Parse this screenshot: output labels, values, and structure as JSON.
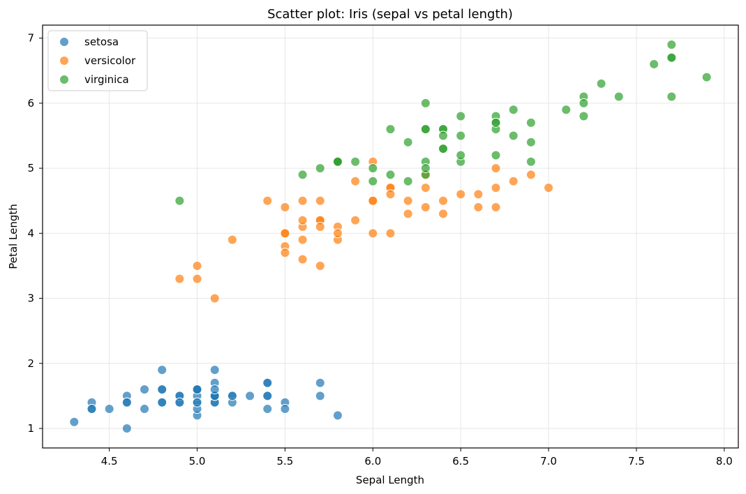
{
  "chart_data": {
    "type": "scatter",
    "title": "Scatter plot: Iris (sepal vs petal length)",
    "xlabel": "Sepal Length",
    "ylabel": "Petal Length",
    "xlim": [
      4.12,
      8.08
    ],
    "ylim": [
      0.7,
      7.2
    ],
    "x_ticks": [
      "4.5",
      "5.0",
      "5.5",
      "6.0",
      "6.5",
      "7.0",
      "7.5",
      "8.0"
    ],
    "y_ticks": [
      "1",
      "2",
      "3",
      "4",
      "5",
      "6",
      "7"
    ],
    "grid": true,
    "legend_position": "top-left",
    "point_alpha": 0.7,
    "series": [
      {
        "name": "setosa",
        "color": "#1f77b4",
        "points": [
          [
            5.1,
            1.4
          ],
          [
            4.9,
            1.4
          ],
          [
            4.7,
            1.3
          ],
          [
            4.6,
            1.5
          ],
          [
            5.0,
            1.4
          ],
          [
            5.4,
            1.7
          ],
          [
            4.6,
            1.4
          ],
          [
            5.0,
            1.5
          ],
          [
            4.4,
            1.4
          ],
          [
            4.9,
            1.5
          ],
          [
            5.4,
            1.5
          ],
          [
            4.8,
            1.6
          ],
          [
            4.8,
            1.4
          ],
          [
            4.3,
            1.1
          ],
          [
            5.8,
            1.2
          ],
          [
            5.7,
            1.5
          ],
          [
            5.4,
            1.3
          ],
          [
            5.1,
            1.4
          ],
          [
            5.7,
            1.7
          ],
          [
            5.1,
            1.5
          ],
          [
            5.4,
            1.7
          ],
          [
            5.1,
            1.5
          ],
          [
            4.6,
            1.0
          ],
          [
            5.1,
            1.7
          ],
          [
            4.8,
            1.9
          ],
          [
            5.0,
            1.6
          ],
          [
            5.0,
            1.6
          ],
          [
            5.2,
            1.5
          ],
          [
            5.2,
            1.4
          ],
          [
            4.7,
            1.6
          ],
          [
            4.8,
            1.6
          ],
          [
            5.4,
            1.5
          ],
          [
            5.2,
            1.5
          ],
          [
            5.5,
            1.4
          ],
          [
            4.9,
            1.5
          ],
          [
            5.0,
            1.2
          ],
          [
            5.5,
            1.3
          ],
          [
            4.9,
            1.4
          ],
          [
            4.4,
            1.3
          ],
          [
            5.1,
            1.5
          ],
          [
            5.0,
            1.3
          ],
          [
            4.5,
            1.3
          ],
          [
            4.4,
            1.3
          ],
          [
            5.0,
            1.6
          ],
          [
            5.1,
            1.9
          ],
          [
            4.8,
            1.4
          ],
          [
            5.1,
            1.6
          ],
          [
            4.6,
            1.4
          ],
          [
            5.3,
            1.5
          ],
          [
            5.0,
            1.4
          ]
        ]
      },
      {
        "name": "versicolor",
        "color": "#ff7f0e",
        "points": [
          [
            7.0,
            4.7
          ],
          [
            6.4,
            4.5
          ],
          [
            6.9,
            4.9
          ],
          [
            5.5,
            4.0
          ],
          [
            6.5,
            4.6
          ],
          [
            5.7,
            4.5
          ],
          [
            6.3,
            4.7
          ],
          [
            4.9,
            3.3
          ],
          [
            6.6,
            4.6
          ],
          [
            5.2,
            3.9
          ],
          [
            5.0,
            3.5
          ],
          [
            5.9,
            4.2
          ],
          [
            6.0,
            4.0
          ],
          [
            6.1,
            4.7
          ],
          [
            5.6,
            3.6
          ],
          [
            6.7,
            4.4
          ],
          [
            5.6,
            4.5
          ],
          [
            5.8,
            4.1
          ],
          [
            6.2,
            4.5
          ],
          [
            5.6,
            3.9
          ],
          [
            5.9,
            4.8
          ],
          [
            6.1,
            4.0
          ],
          [
            6.3,
            4.9
          ],
          [
            6.1,
            4.7
          ],
          [
            6.4,
            4.3
          ],
          [
            6.6,
            4.4
          ],
          [
            6.8,
            4.8
          ],
          [
            6.7,
            5.0
          ],
          [
            6.0,
            4.5
          ],
          [
            5.7,
            3.5
          ],
          [
            5.5,
            3.8
          ],
          [
            5.5,
            3.7
          ],
          [
            5.8,
            3.9
          ],
          [
            6.0,
            5.1
          ],
          [
            5.4,
            4.5
          ],
          [
            6.0,
            4.5
          ],
          [
            6.7,
            4.7
          ],
          [
            6.3,
            4.4
          ],
          [
            5.6,
            4.1
          ],
          [
            5.5,
            4.0
          ],
          [
            5.5,
            4.4
          ],
          [
            6.1,
            4.6
          ],
          [
            5.8,
            4.0
          ],
          [
            5.0,
            3.3
          ],
          [
            5.6,
            4.2
          ],
          [
            5.7,
            4.2
          ],
          [
            5.7,
            4.2
          ],
          [
            6.2,
            4.3
          ],
          [
            5.1,
            3.0
          ],
          [
            5.7,
            4.1
          ]
        ]
      },
      {
        "name": "virginica",
        "color": "#2ca02c",
        "points": [
          [
            6.3,
            6.0
          ],
          [
            5.8,
            5.1
          ],
          [
            7.1,
            5.9
          ],
          [
            6.3,
            5.6
          ],
          [
            6.5,
            5.8
          ],
          [
            7.6,
            6.6
          ],
          [
            4.9,
            4.5
          ],
          [
            7.3,
            6.3
          ],
          [
            6.7,
            5.8
          ],
          [
            7.2,
            6.1
          ],
          [
            6.5,
            5.1
          ],
          [
            6.4,
            5.3
          ],
          [
            6.8,
            5.5
          ],
          [
            5.7,
            5.0
          ],
          [
            5.8,
            5.1
          ],
          [
            6.4,
            5.3
          ],
          [
            6.5,
            5.5
          ],
          [
            7.7,
            6.7
          ],
          [
            7.7,
            6.9
          ],
          [
            6.0,
            5.0
          ],
          [
            6.9,
            5.7
          ],
          [
            5.6,
            4.9
          ],
          [
            7.7,
            6.7
          ],
          [
            6.3,
            4.9
          ],
          [
            6.7,
            5.7
          ],
          [
            7.2,
            6.0
          ],
          [
            6.2,
            4.8
          ],
          [
            6.1,
            4.9
          ],
          [
            6.4,
            5.6
          ],
          [
            7.2,
            5.8
          ],
          [
            7.4,
            6.1
          ],
          [
            7.9,
            6.4
          ],
          [
            6.4,
            5.6
          ],
          [
            6.3,
            5.1
          ],
          [
            6.1,
            5.6
          ],
          [
            7.7,
            6.1
          ],
          [
            6.3,
            5.6
          ],
          [
            6.4,
            5.5
          ],
          [
            6.0,
            4.8
          ],
          [
            6.9,
            5.4
          ],
          [
            6.7,
            5.6
          ],
          [
            6.9,
            5.1
          ],
          [
            5.8,
            5.1
          ],
          [
            6.8,
            5.9
          ],
          [
            6.7,
            5.7
          ],
          [
            6.7,
            5.2
          ],
          [
            6.3,
            5.0
          ],
          [
            6.5,
            5.2
          ],
          [
            6.2,
            5.4
          ],
          [
            5.9,
            5.1
          ]
        ]
      }
    ]
  }
}
